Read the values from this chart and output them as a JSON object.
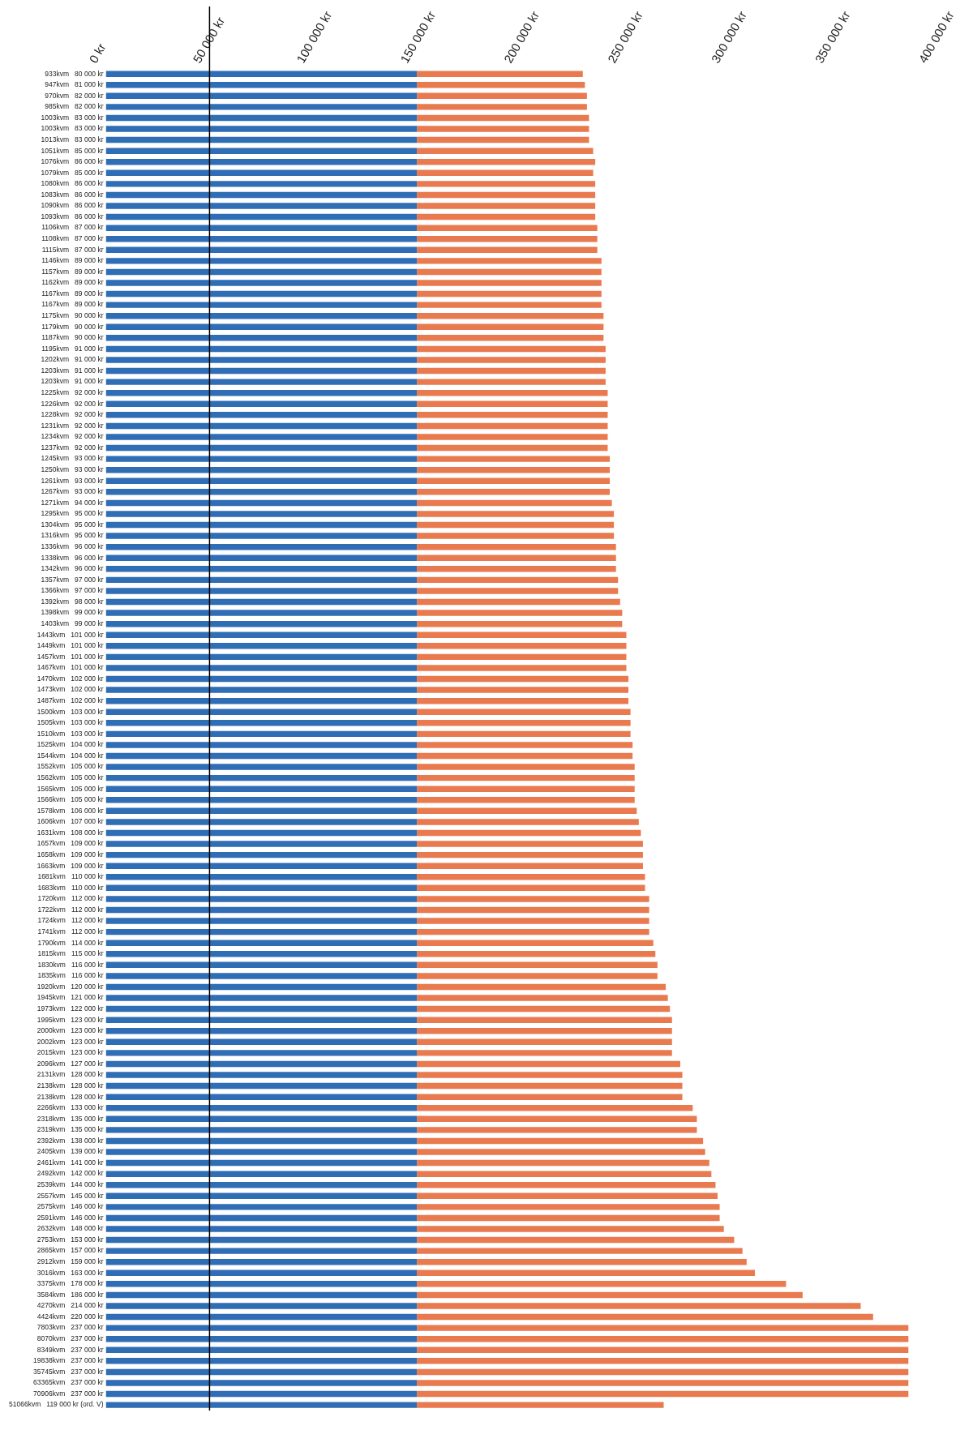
{
  "chart_data": {
    "type": "bar",
    "orientation": "horizontal",
    "stacked": true,
    "categories": [
      "933kvm   80 000 kr",
      "947kvm   81 000 kr",
      "970kvm   82 000 kr",
      "985kvm   82 000 kr",
      "1003kvm   83 000 kr",
      "1003kvm   83 000 kr",
      "1013kvm   83 000 kr",
      "1051kvm   85 000 kr",
      "1076kvm   86 000 kr",
      "1079kvm   85 000 kr",
      "1080kvm   86 000 kr",
      "1083kvm   86 000 kr",
      "1090kvm   86 000 kr",
      "1093kvm   86 000 kr",
      "1106kvm   87 000 kr",
      "1108kvm   87 000 kr",
      "1115kvm   87 000 kr",
      "1146kvm   89 000 kr",
      "1157kvm   89 000 kr",
      "1162kvm   89 000 kr",
      "1167kvm   89 000 kr",
      "1167kvm   89 000 kr",
      "1175kvm   90 000 kr",
      "1179kvm   90 000 kr",
      "1187kvm   90 000 kr",
      "1195kvm   91 000 kr",
      "1202kvm   91 000 kr",
      "1203kvm   91 000 kr",
      "1203kvm   91 000 kr",
      "1225kvm   92 000 kr",
      "1226kvm   92 000 kr",
      "1228kvm   92 000 kr",
      "1231kvm   92 000 kr",
      "1234kvm   92 000 kr",
      "1237kvm   92 000 kr",
      "1245kvm   93 000 kr",
      "1250kvm   93 000 kr",
      "1261kvm   93 000 kr",
      "1267kvm   93 000 kr",
      "1271kvm   94 000 kr",
      "1295kvm   95 000 kr",
      "1304kvm   95 000 kr",
      "1316kvm   95 000 kr",
      "1336kvm   96 000 kr",
      "1338kvm   96 000 kr",
      "1342kvm   96 000 kr",
      "1357kvm   97 000 kr",
      "1366kvm   97 000 kr",
      "1392kvm   98 000 kr",
      "1398kvm   99 000 kr",
      "1403kvm   99 000 kr",
      "1443kvm   101 000 kr",
      "1449kvm   101 000 kr",
      "1457kvm   101 000 kr",
      "1467kvm   101 000 kr",
      "1470kvm   102 000 kr",
      "1473kvm   102 000 kr",
      "1487kvm   102 000 kr",
      "1500kvm   103 000 kr",
      "1505kvm   103 000 kr",
      "1510kvm   103 000 kr",
      "1525kvm   104 000 kr",
      "1544kvm   104 000 kr",
      "1552kvm   105 000 kr",
      "1562kvm   105 000 kr",
      "1565kvm   105 000 kr",
      "1566kvm   105 000 kr",
      "1578kvm   106 000 kr",
      "1606kvm   107 000 kr",
      "1631kvm   108 000 kr",
      "1657kvm   109 000 kr",
      "1658kvm   109 000 kr",
      "1663kvm   109 000 kr",
      "1681kvm   110 000 kr",
      "1683kvm   110 000 kr",
      "1720kvm   112 000 kr",
      "1722kvm   112 000 kr",
      "1724kvm   112 000 kr",
      "1741kvm   112 000 kr",
      "1790kvm   114 000 kr",
      "1815kvm   115 000 kr",
      "1830kvm   116 000 kr",
      "1835kvm   116 000 kr",
      "1920kvm   120 000 kr",
      "1945kvm   121 000 kr",
      "1973kvm   122 000 kr",
      "1995kvm   123 000 kr",
      "2000kvm   123 000 kr",
      "2002kvm   123 000 kr",
      "2015kvm   123 000 kr",
      "2096kvm   127 000 kr",
      "2131kvm   128 000 kr",
      "2138kvm   128 000 kr",
      "2138kvm   128 000 kr",
      "2266kvm   133 000 kr",
      "2318kvm   135 000 kr",
      "2319kvm   135 000 kr",
      "2392kvm   138 000 kr",
      "2405kvm   139 000 kr",
      "2461kvm   141 000 kr",
      "2492kvm   142 000 kr",
      "2539kvm   144 000 kr",
      "2557kvm   145 000 kr",
      "2575kvm   146 000 kr",
      "2591kvm   146 000 kr",
      "2632kvm   148 000 kr",
      "2753kvm   153 000 kr",
      "2865kvm   157 000 kr",
      "2912kvm   159 000 kr",
      "3016kvm   163 000 kr",
      "3375kvm   178 000 kr",
      "3584kvm   186 000 kr",
      "4270kvm   214 000 kr",
      "4424kvm   220 000 kr",
      "7803kvm   237 000 kr",
      "8070kvm   237 000 kr",
      "8349kvm   237 000 kr",
      "19838kvm   237 000 kr",
      "35745kvm   237 000 kr",
      "63365kvm   237 000 kr",
      "70906kvm   237 000 kr",
      "51066kvm   119 000 kr (ord. V)"
    ],
    "series": [
      {
        "color": "#2f6db5",
        "values": [
          150000,
          150000,
          150000,
          150000,
          150000,
          150000,
          150000,
          150000,
          150000,
          150000,
          150000,
          150000,
          150000,
          150000,
          150000,
          150000,
          150000,
          150000,
          150000,
          150000,
          150000,
          150000,
          150000,
          150000,
          150000,
          150000,
          150000,
          150000,
          150000,
          150000,
          150000,
          150000,
          150000,
          150000,
          150000,
          150000,
          150000,
          150000,
          150000,
          150000,
          150000,
          150000,
          150000,
          150000,
          150000,
          150000,
          150000,
          150000,
          150000,
          150000,
          150000,
          150000,
          150000,
          150000,
          150000,
          150000,
          150000,
          150000,
          150000,
          150000,
          150000,
          150000,
          150000,
          150000,
          150000,
          150000,
          150000,
          150000,
          150000,
          150000,
          150000,
          150000,
          150000,
          150000,
          150000,
          150000,
          150000,
          150000,
          150000,
          150000,
          150000,
          150000,
          150000,
          150000,
          150000,
          150000,
          150000,
          150000,
          150000,
          150000,
          150000,
          150000,
          150000,
          150000,
          150000,
          150000,
          150000,
          150000,
          150000,
          150000,
          150000,
          150000,
          150000,
          150000,
          150000,
          150000,
          150000,
          150000,
          150000,
          150000,
          150000,
          150000,
          150000,
          150000,
          150000,
          150000,
          150000,
          150000,
          150000,
          150000,
          150000,
          150000
        ]
      },
      {
        "color": "#e97a4f",
        "values": [
          80000,
          81000,
          82000,
          82000,
          83000,
          83000,
          83000,
          85000,
          86000,
          85000,
          86000,
          86000,
          86000,
          86000,
          87000,
          87000,
          87000,
          89000,
          89000,
          89000,
          89000,
          89000,
          90000,
          90000,
          90000,
          91000,
          91000,
          91000,
          91000,
          92000,
          92000,
          92000,
          92000,
          92000,
          92000,
          93000,
          93000,
          93000,
          93000,
          94000,
          95000,
          95000,
          95000,
          96000,
          96000,
          96000,
          97000,
          97000,
          98000,
          99000,
          99000,
          101000,
          101000,
          101000,
          101000,
          102000,
          102000,
          102000,
          103000,
          103000,
          103000,
          104000,
          104000,
          105000,
          105000,
          105000,
          105000,
          106000,
          107000,
          108000,
          109000,
          109000,
          109000,
          110000,
          110000,
          112000,
          112000,
          112000,
          112000,
          114000,
          115000,
          116000,
          116000,
          120000,
          121000,
          122000,
          123000,
          123000,
          123000,
          123000,
          127000,
          128000,
          128000,
          128000,
          133000,
          135000,
          135000,
          138000,
          139000,
          141000,
          142000,
          144000,
          145000,
          146000,
          146000,
          148000,
          153000,
          157000,
          159000,
          163000,
          178000,
          186000,
          214000,
          220000,
          237000,
          237000,
          237000,
          237000,
          237000,
          237000,
          237000,
          119000
        ]
      }
    ],
    "xlim": [
      0,
      400000
    ],
    "xticks": [
      {
        "value": 0,
        "label": "0 kr"
      },
      {
        "value": 50000,
        "label": "50 000 kr"
      },
      {
        "value": 100000,
        "label": "100 000 kr"
      },
      {
        "value": 150000,
        "label": "150 000 kr"
      },
      {
        "value": 200000,
        "label": "200 000 kr"
      },
      {
        "value": 250000,
        "label": "250 000 kr"
      },
      {
        "value": 300000,
        "label": "300 000 kr"
      },
      {
        "value": 350000,
        "label": "350 000 kr"
      },
      {
        "value": 400000,
        "label": "400 000 kr"
      }
    ],
    "ref_lines": [
      {
        "axis": "x",
        "value": 50000,
        "color": "#000000"
      }
    ],
    "grid": false,
    "legend": false
  }
}
